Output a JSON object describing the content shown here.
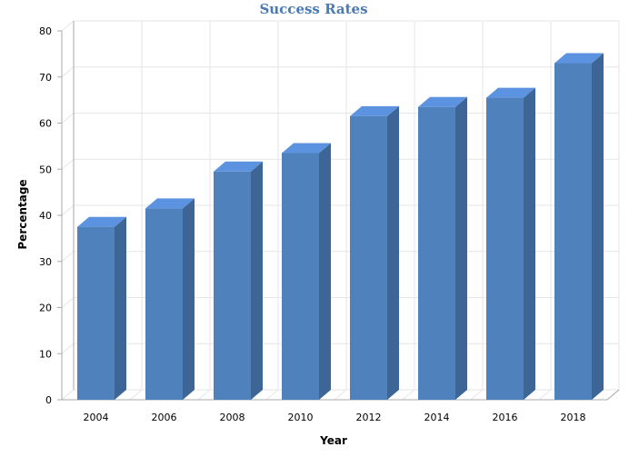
{
  "chart_data": {
    "type": "bar",
    "title": "Success Rates",
    "xlabel": "Year",
    "ylabel": "Percentage",
    "categories": [
      "2004",
      "2006",
      "2008",
      "2010",
      "2012",
      "2014",
      "2016",
      "2018"
    ],
    "values": [
      37.5,
      41.5,
      49.5,
      53.5,
      61.5,
      63.5,
      65.5,
      73
    ],
    "ylim": [
      0,
      80
    ],
    "yticks": [
      0,
      10,
      20,
      30,
      40,
      50,
      60,
      70,
      80
    ],
    "grid": true,
    "legend": "none",
    "style": "3d-column",
    "colors": {
      "front": "#4f81bd",
      "top": "#5b93e0",
      "side": "#3d6595",
      "title": "#4a7ab5"
    }
  }
}
